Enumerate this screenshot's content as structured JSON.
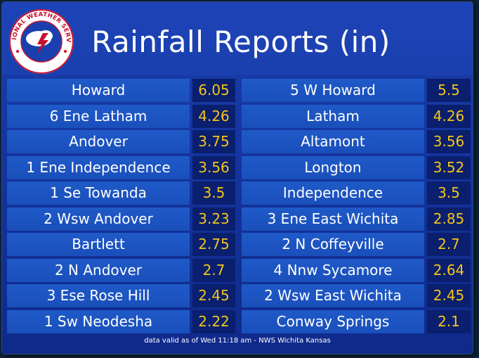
{
  "title": "Rainfall Reports (in)",
  "logo": {
    "text": "NATIONAL WEATHER SERVICE",
    "icon": "nws-logo-icon"
  },
  "left_column": [
    {
      "name": "Howard",
      "value": "6.05"
    },
    {
      "name": "6 Ene Latham",
      "value": "4.26"
    },
    {
      "name": "Andover",
      "value": "3.75"
    },
    {
      "name": "1 Ene Independence",
      "value": "3.56"
    },
    {
      "name": "1 Se Towanda",
      "value": "3.5"
    },
    {
      "name": "2 Wsw Andover",
      "value": "3.23"
    },
    {
      "name": "Bartlett",
      "value": "2.75"
    },
    {
      "name": "2 N Andover",
      "value": "2.7"
    },
    {
      "name": "3 Ese Rose Hill",
      "value": "2.45"
    },
    {
      "name": "1 Sw Neodesha",
      "value": "2.22"
    }
  ],
  "right_column": [
    {
      "name": "5 W Howard",
      "value": "5.5"
    },
    {
      "name": "Latham",
      "value": "4.26"
    },
    {
      "name": "Altamont",
      "value": "3.56"
    },
    {
      "name": "Longton",
      "value": "3.52"
    },
    {
      "name": "Independence",
      "value": "3.5"
    },
    {
      "name": "3 Ene East Wichita",
      "value": "2.85"
    },
    {
      "name": "2 N Coffeyville",
      "value": "2.7"
    },
    {
      "name": "4 Nnw Sycamore",
      "value": "2.64"
    },
    {
      "name": "2 Wsw East Wichita",
      "value": "2.45"
    },
    {
      "name": "Conway Springs",
      "value": "2.1"
    }
  ],
  "footer": "data valid as of Wed 11:18 am - NWS Wichita Kansas",
  "colors": {
    "value_text": "#f5c518",
    "name_bg": "#1f5ac8",
    "value_bg": "#0a1f6e"
  }
}
